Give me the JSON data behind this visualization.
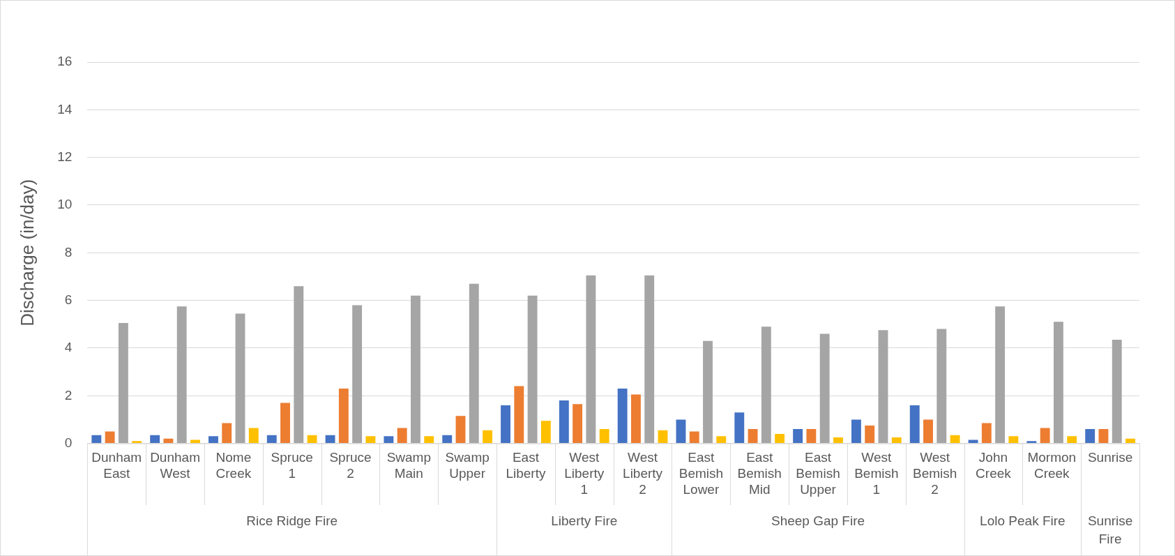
{
  "chart_data": {
    "type": "bar",
    "ylabel": "Discharge (in/day)",
    "categories": [
      "Dunham East",
      "Dunham West",
      "Nome Creek",
      "Spruce 1",
      "Spruce 2",
      "Swamp Main",
      "Swamp Upper",
      "East Liberty",
      "West Liberty 1",
      "West Liberty 2",
      "East Bemish Lower",
      "East Bemish Mid",
      "East Bemish Upper",
      "West Bemish 1",
      "West Bemish 2",
      "John Creek",
      "Mormon Creek",
      "Sunrise"
    ],
    "series": [
      {
        "color": "#4472c4",
        "values": [
          0.35,
          0.35,
          0.3,
          0.35,
          0.35,
          0.3,
          0.35,
          1.6,
          1.8,
          2.3,
          1.0,
          1.3,
          0.6,
          1.0,
          1.6,
          0.15,
          0.1,
          0.6
        ]
      },
      {
        "color": "#ed7d31",
        "values": [
          0.5,
          0.2,
          0.85,
          1.7,
          2.3,
          0.65,
          1.15,
          2.4,
          1.65,
          2.05,
          0.5,
          0.6,
          0.6,
          0.75,
          1.0,
          0.85,
          0.65,
          0.6
        ]
      },
      {
        "color": "#a5a5a5",
        "values": [
          5.05,
          5.75,
          5.45,
          6.6,
          5.8,
          6.2,
          6.7,
          6.2,
          7.05,
          7.05,
          4.3,
          4.9,
          4.6,
          4.75,
          4.8,
          5.75,
          5.1,
          4.35
        ]
      },
      {
        "color": "#ffc000",
        "values": [
          0.1,
          0.15,
          0.65,
          0.35,
          0.3,
          0.3,
          0.55,
          0.95,
          0.6,
          0.55,
          0.3,
          0.4,
          0.25,
          0.25,
          0.35,
          0.3,
          0.3,
          0.2
        ]
      }
    ],
    "ylim": [
      0,
      16
    ],
    "yticks": [
      0,
      2,
      4,
      6,
      8,
      10,
      12,
      14,
      16
    ],
    "grid": "y",
    "annotations": [
      "Rice Ridge Fire",
      "Liberty Fire",
      "Sheep Gap Fire",
      "Lolo Peak Fire",
      "Sunrise Fire"
    ]
  }
}
